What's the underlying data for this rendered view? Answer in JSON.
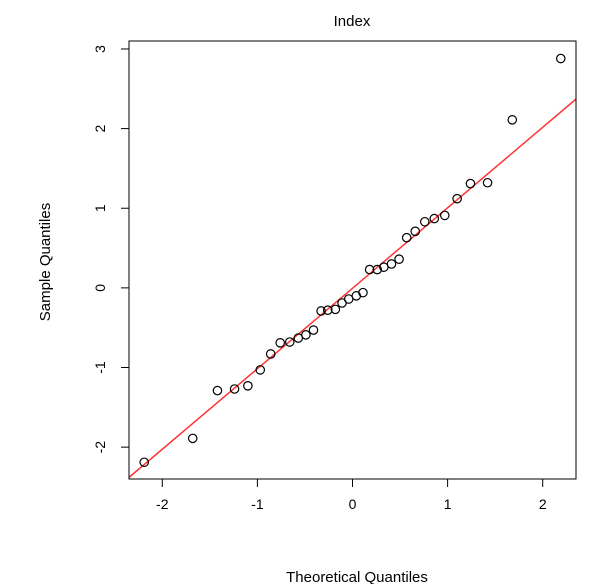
{
  "chart_data": {
    "type": "scatter",
    "title": "Index",
    "xlabel": "Theoretical Quantiles",
    "ylabel": "Sample Quantiles",
    "xlim": [
      -2.35,
      2.35
    ],
    "ylim": [
      -2.4,
      3.1
    ],
    "x_ticks": [
      -2,
      -1,
      0,
      1,
      2
    ],
    "x_tick_labels": [
      "-2",
      "-1",
      "0",
      "1",
      "2"
    ],
    "y_ticks": [
      -2,
      -1,
      0,
      1,
      2,
      3
    ],
    "y_tick_labels": [
      "-2",
      "-1",
      "0",
      "1",
      "2",
      "3"
    ],
    "grid": false,
    "reference_line": {
      "color": "#ff3333",
      "x": [
        -2.35,
        2.35
      ],
      "y": [
        -2.38,
        2.37
      ]
    },
    "point_color": "#000000",
    "points": [
      {
        "x": -2.19,
        "y": -2.19
      },
      {
        "x": -1.68,
        "y": -1.89
      },
      {
        "x": -1.42,
        "y": -1.29
      },
      {
        "x": -1.24,
        "y": -1.27
      },
      {
        "x": -1.1,
        "y": -1.23
      },
      {
        "x": -0.97,
        "y": -1.03
      },
      {
        "x": -0.86,
        "y": -0.83
      },
      {
        "x": -0.76,
        "y": -0.69
      },
      {
        "x": -0.66,
        "y": -0.68
      },
      {
        "x": -0.57,
        "y": -0.63
      },
      {
        "x": -0.49,
        "y": -0.59
      },
      {
        "x": -0.41,
        "y": -0.53
      },
      {
        "x": -0.33,
        "y": -0.29
      },
      {
        "x": -0.26,
        "y": -0.28
      },
      {
        "x": -0.18,
        "y": -0.27
      },
      {
        "x": -0.11,
        "y": -0.19
      },
      {
        "x": -0.04,
        "y": -0.14
      },
      {
        "x": 0.04,
        "y": -0.1
      },
      {
        "x": 0.11,
        "y": -0.06
      },
      {
        "x": 0.18,
        "y": 0.23
      },
      {
        "x": 0.26,
        "y": 0.23
      },
      {
        "x": 0.33,
        "y": 0.26
      },
      {
        "x": 0.41,
        "y": 0.3
      },
      {
        "x": 0.49,
        "y": 0.36
      },
      {
        "x": 0.57,
        "y": 0.63
      },
      {
        "x": 0.66,
        "y": 0.71
      },
      {
        "x": 0.76,
        "y": 0.83
      },
      {
        "x": 0.86,
        "y": 0.87
      },
      {
        "x": 0.97,
        "y": 0.91
      },
      {
        "x": 1.1,
        "y": 1.12
      },
      {
        "x": 1.24,
        "y": 1.31
      },
      {
        "x": 1.42,
        "y": 1.32
      },
      {
        "x": 1.68,
        "y": 2.11
      },
      {
        "x": 2.19,
        "y": 2.88
      }
    ]
  }
}
